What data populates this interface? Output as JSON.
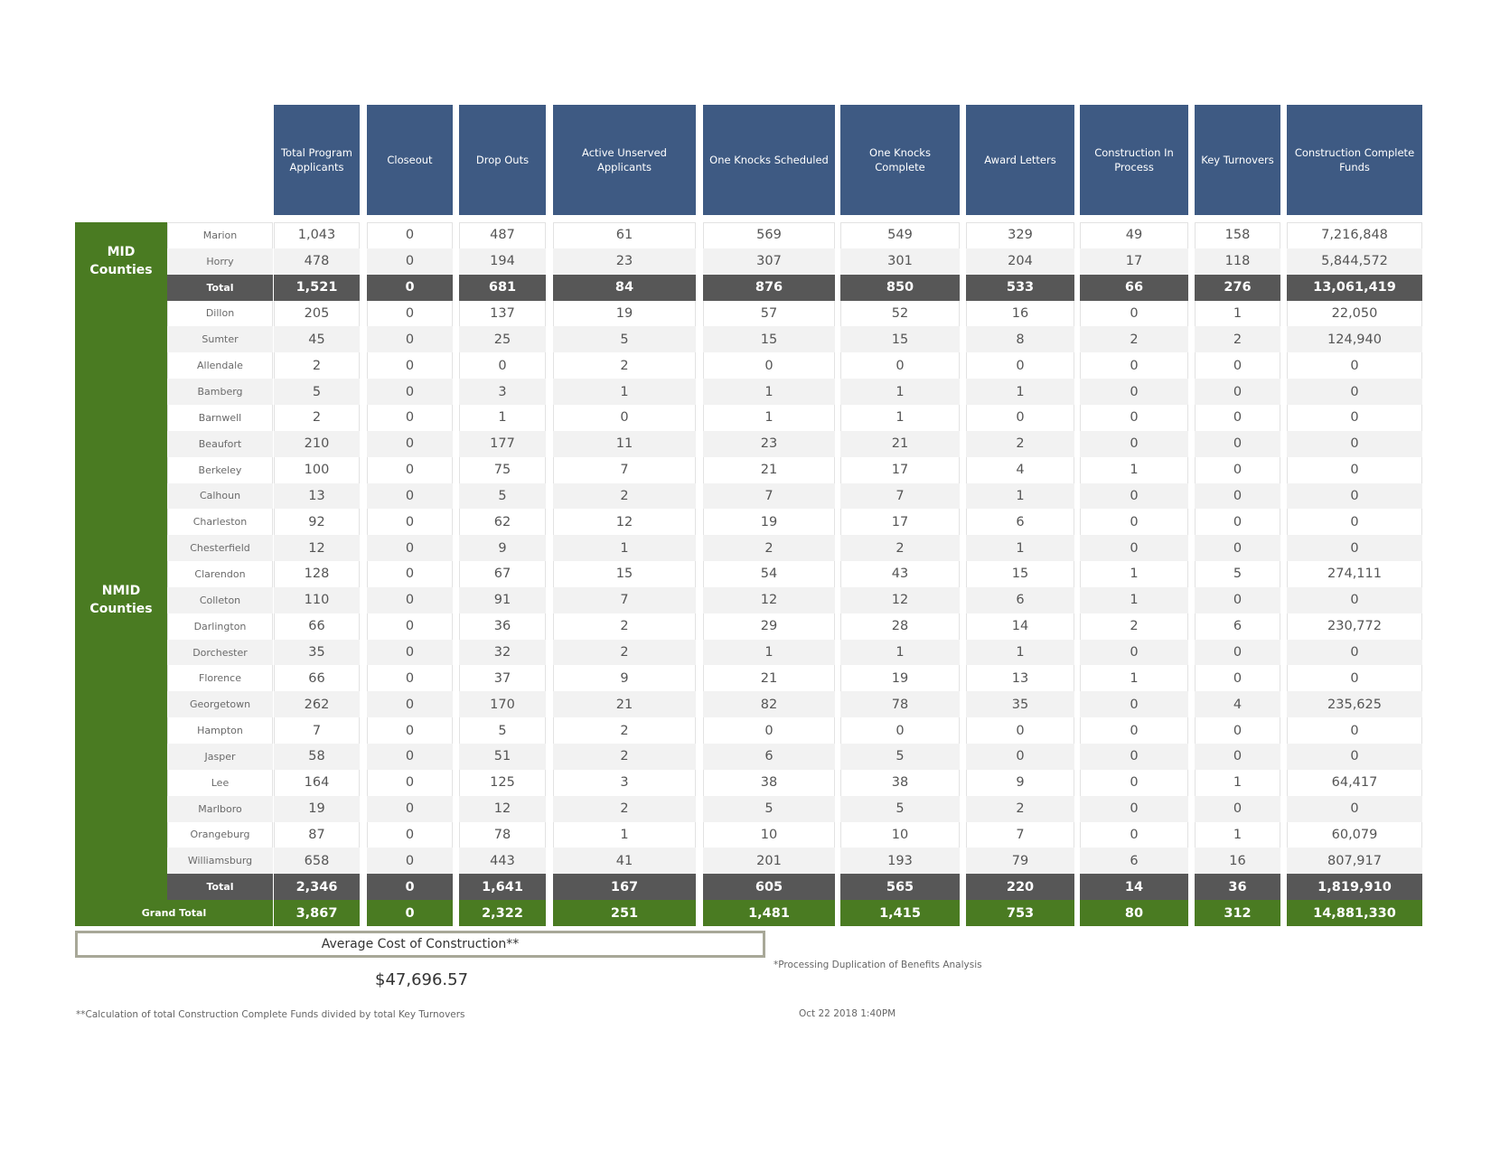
{
  "columns": [
    "Total Program Applicants",
    "Closeout",
    "Drop Outs",
    "Active Unserved Applicants",
    "One Knocks Scheduled",
    "One Knocks Complete",
    "Award Letters",
    "Construction In Process",
    "Key Turnovers",
    "Construction Complete Funds"
  ],
  "groups": [
    {
      "label": "MID Counties",
      "rows": [
        {
          "county": "Marion",
          "values": [
            "1,043",
            "0",
            "487",
            "61",
            "569",
            "549",
            "329",
            "49",
            "158",
            "7,216,848"
          ]
        },
        {
          "county": "Horry",
          "values": [
            "478",
            "0",
            "194",
            "23",
            "307",
            "301",
            "204",
            "17",
            "118",
            "5,844,572"
          ]
        }
      ],
      "total": {
        "label": "Total",
        "values": [
          "1,521",
          "0",
          "681",
          "84",
          "876",
          "850",
          "533",
          "66",
          "276",
          "13,061,419"
        ]
      }
    },
    {
      "label": "NMID Counties",
      "rows": [
        {
          "county": "Dillon",
          "values": [
            "205",
            "0",
            "137",
            "19",
            "57",
            "52",
            "16",
            "0",
            "1",
            "22,050"
          ]
        },
        {
          "county": "Sumter",
          "values": [
            "45",
            "0",
            "25",
            "5",
            "15",
            "15",
            "8",
            "2",
            "2",
            "124,940"
          ]
        },
        {
          "county": "Allendale",
          "values": [
            "2",
            "0",
            "0",
            "2",
            "0",
            "0",
            "0",
            "0",
            "0",
            "0"
          ]
        },
        {
          "county": "Bamberg",
          "values": [
            "5",
            "0",
            "3",
            "1",
            "1",
            "1",
            "1",
            "0",
            "0",
            "0"
          ]
        },
        {
          "county": "Barnwell",
          "values": [
            "2",
            "0",
            "1",
            "0",
            "1",
            "1",
            "0",
            "0",
            "0",
            "0"
          ]
        },
        {
          "county": "Beaufort",
          "values": [
            "210",
            "0",
            "177",
            "11",
            "23",
            "21",
            "2",
            "0",
            "0",
            "0"
          ]
        },
        {
          "county": "Berkeley",
          "values": [
            "100",
            "0",
            "75",
            "7",
            "21",
            "17",
            "4",
            "1",
            "0",
            "0"
          ]
        },
        {
          "county": "Calhoun",
          "values": [
            "13",
            "0",
            "5",
            "2",
            "7",
            "7",
            "1",
            "0",
            "0",
            "0"
          ]
        },
        {
          "county": "Charleston",
          "values": [
            "92",
            "0",
            "62",
            "12",
            "19",
            "17",
            "6",
            "0",
            "0",
            "0"
          ]
        },
        {
          "county": "Chesterfield",
          "values": [
            "12",
            "0",
            "9",
            "1",
            "2",
            "2",
            "1",
            "0",
            "0",
            "0"
          ]
        },
        {
          "county": "Clarendon",
          "values": [
            "128",
            "0",
            "67",
            "15",
            "54",
            "43",
            "15",
            "1",
            "5",
            "274,111"
          ]
        },
        {
          "county": "Colleton",
          "values": [
            "110",
            "0",
            "91",
            "7",
            "12",
            "12",
            "6",
            "1",
            "0",
            "0"
          ]
        },
        {
          "county": "Darlington",
          "values": [
            "66",
            "0",
            "36",
            "2",
            "29",
            "28",
            "14",
            "2",
            "6",
            "230,772"
          ]
        },
        {
          "county": "Dorchester",
          "values": [
            "35",
            "0",
            "32",
            "2",
            "1",
            "1",
            "1",
            "0",
            "0",
            "0"
          ]
        },
        {
          "county": "Florence",
          "values": [
            "66",
            "0",
            "37",
            "9",
            "21",
            "19",
            "13",
            "1",
            "0",
            "0"
          ]
        },
        {
          "county": "Georgetown",
          "values": [
            "262",
            "0",
            "170",
            "21",
            "82",
            "78",
            "35",
            "0",
            "4",
            "235,625"
          ]
        },
        {
          "county": "Hampton",
          "values": [
            "7",
            "0",
            "5",
            "2",
            "0",
            "0",
            "0",
            "0",
            "0",
            "0"
          ]
        },
        {
          "county": "Jasper",
          "values": [
            "58",
            "0",
            "51",
            "2",
            "6",
            "5",
            "0",
            "0",
            "0",
            "0"
          ]
        },
        {
          "county": "Lee",
          "values": [
            "164",
            "0",
            "125",
            "3",
            "38",
            "38",
            "9",
            "0",
            "1",
            "64,417"
          ]
        },
        {
          "county": "Marlboro",
          "values": [
            "19",
            "0",
            "12",
            "2",
            "5",
            "5",
            "2",
            "0",
            "0",
            "0"
          ]
        },
        {
          "county": "Orangeburg",
          "values": [
            "87",
            "0",
            "78",
            "1",
            "10",
            "10",
            "7",
            "0",
            "1",
            "60,079"
          ]
        },
        {
          "county": "Williamsburg",
          "values": [
            "658",
            "0",
            "443",
            "41",
            "201",
            "193",
            "79",
            "6",
            "16",
            "807,917"
          ]
        }
      ],
      "total": {
        "label": "Total",
        "values": [
          "2,346",
          "0",
          "1,641",
          "167",
          "605",
          "565",
          "220",
          "14",
          "36",
          "1,819,910"
        ]
      }
    }
  ],
  "grand_total": {
    "label": "Grand Total",
    "values": [
      "3,867",
      "0",
      "2,322",
      "251",
      "1,481",
      "1,415",
      "753",
      "80",
      "312",
      "14,881,330"
    ]
  },
  "average": {
    "label": "Average Cost of Construction**",
    "value": "$47,696.57"
  },
  "notes": {
    "processing": "*Processing Duplication of Benefits Analysis",
    "calculation": "**Calculation of total Construction Complete Funds divided by total Key Turnovers",
    "timestamp": "Oct 22 2018  1:40PM"
  }
}
